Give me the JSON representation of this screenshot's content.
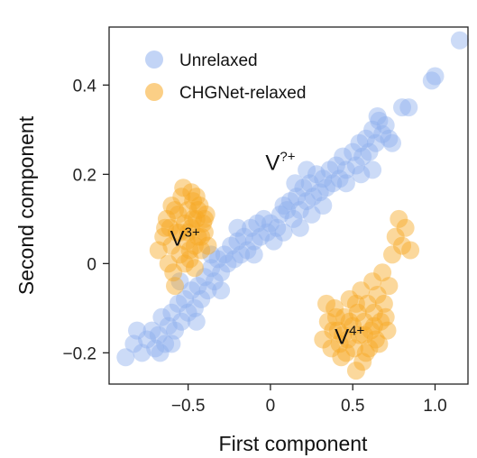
{
  "chart_data": {
    "type": "scatter",
    "xlabel": "First component",
    "ylabel": "Second component",
    "xlim": [
      -0.98,
      1.2
    ],
    "ylim": [
      -0.27,
      0.53
    ],
    "xticks": [
      -0.5,
      0,
      0.5,
      1.0
    ],
    "xtick_labels": [
      "−0.5",
      "0",
      "0.5",
      "1.0"
    ],
    "yticks": [
      -0.2,
      0,
      0.2,
      0.4
    ],
    "ytick_labels": [
      "−0.2",
      "0",
      "0.2",
      "0.4"
    ],
    "grid": false,
    "legend": "top-left",
    "series": [
      {
        "name": "Unrelaxed",
        "color": "#8fb0ee",
        "points": [
          [
            -0.88,
            -0.21
          ],
          [
            -0.83,
            -0.18
          ],
          [
            -0.81,
            -0.15
          ],
          [
            -0.78,
            -0.2
          ],
          [
            -0.75,
            -0.17
          ],
          [
            -0.72,
            -0.15
          ],
          [
            -0.7,
            -0.19
          ],
          [
            -0.68,
            -0.16
          ],
          [
            -0.66,
            -0.12
          ],
          [
            -0.64,
            -0.18
          ],
          [
            -0.62,
            -0.14
          ],
          [
            -0.6,
            -0.11
          ],
          [
            -0.58,
            -0.15
          ],
          [
            -0.56,
            -0.09
          ],
          [
            -0.54,
            -0.13
          ],
          [
            -0.52,
            -0.08
          ],
          [
            -0.5,
            -0.11
          ],
          [
            -0.48,
            -0.06
          ],
          [
            -0.46,
            -0.1
          ],
          [
            -0.44,
            -0.05
          ],
          [
            -0.42,
            -0.08
          ],
          [
            -0.4,
            -0.03
          ],
          [
            -0.38,
            -0.06
          ],
          [
            -0.36,
            -0.01
          ],
          [
            -0.34,
            -0.04
          ],
          [
            -0.32,
            0.01
          ],
          [
            -0.3,
            -0.02
          ],
          [
            -0.28,
            0.02
          ],
          [
            -0.26,
            0.0
          ],
          [
            -0.24,
            0.04
          ],
          [
            -0.22,
            0.01
          ],
          [
            -0.2,
            0.05
          ],
          [
            -0.18,
            0.02
          ],
          [
            -0.16,
            0.06
          ],
          [
            -0.14,
            0.03
          ],
          [
            -0.12,
            0.08
          ],
          [
            -0.1,
            0.05
          ],
          [
            -0.08,
            0.09
          ],
          [
            -0.06,
            0.06
          ],
          [
            -0.04,
            0.1
          ],
          [
            -0.02,
            0.07
          ],
          [
            0.0,
            0.09
          ],
          [
            0.02,
            0.05
          ],
          [
            0.04,
            0.08
          ],
          [
            0.06,
            0.11
          ],
          [
            0.08,
            0.07
          ],
          [
            0.1,
            0.12
          ],
          [
            0.12,
            0.14
          ],
          [
            0.14,
            0.1
          ],
          [
            0.16,
            0.15
          ],
          [
            0.18,
            0.12
          ],
          [
            0.2,
            0.17
          ],
          [
            0.22,
            0.14
          ],
          [
            0.24,
            0.18
          ],
          [
            0.26,
            0.15
          ],
          [
            0.28,
            0.2
          ],
          [
            0.3,
            0.16
          ],
          [
            0.32,
            0.19
          ],
          [
            0.34,
            0.17
          ],
          [
            0.36,
            0.21
          ],
          [
            0.38,
            0.18
          ],
          [
            0.4,
            0.22
          ],
          [
            0.42,
            0.19
          ],
          [
            0.44,
            0.24
          ],
          [
            0.46,
            0.21
          ],
          [
            0.5,
            0.25
          ],
          [
            0.52,
            0.22
          ],
          [
            0.54,
            0.27
          ],
          [
            0.56,
            0.24
          ],
          [
            0.58,
            0.28
          ],
          [
            0.6,
            0.25
          ],
          [
            0.62,
            0.3
          ],
          [
            0.64,
            0.27
          ],
          [
            0.66,
            0.32
          ],
          [
            0.68,
            0.29
          ],
          [
            0.7,
            0.31
          ],
          [
            0.72,
            0.28
          ],
          [
            0.74,
            0.27
          ],
          [
            0.62,
            0.21
          ],
          [
            0.55,
            0.2
          ],
          [
            0.46,
            0.18
          ],
          [
            0.32,
            0.13
          ],
          [
            0.25,
            0.11
          ],
          [
            0.18,
            0.08
          ],
          [
            -0.1,
            0.02
          ],
          [
            -0.3,
            -0.06
          ],
          [
            -0.45,
            -0.13
          ],
          [
            -0.6,
            -0.18
          ],
          [
            -0.67,
            -0.2
          ],
          [
            0.8,
            0.35
          ],
          [
            0.84,
            0.35
          ],
          [
            0.98,
            0.41
          ],
          [
            1.0,
            0.42
          ],
          [
            1.15,
            0.5
          ],
          [
            0.65,
            0.33
          ],
          [
            0.08,
            0.13
          ],
          [
            0.15,
            0.18
          ],
          [
            0.22,
            0.21
          ],
          [
            -0.2,
            0.08
          ],
          [
            -0.36,
            0.02
          ],
          [
            -0.55,
            -0.04
          ]
        ]
      },
      {
        "name": "CHGNet-relaxed",
        "color": "#f7a823",
        "points": [
          [
            -0.68,
            0.03
          ],
          [
            -0.65,
            0.06
          ],
          [
            -0.63,
            0.1
          ],
          [
            -0.62,
            0.0
          ],
          [
            -0.6,
            0.04
          ],
          [
            -0.58,
            0.12
          ],
          [
            -0.57,
            0.07
          ],
          [
            -0.55,
            0.02
          ],
          [
            -0.54,
            0.15
          ],
          [
            -0.52,
            0.09
          ],
          [
            -0.51,
            0.05
          ],
          [
            -0.5,
            0.12
          ],
          [
            -0.49,
            0.01
          ],
          [
            -0.48,
            0.08
          ],
          [
            -0.47,
            0.14
          ],
          [
            -0.46,
            0.04
          ],
          [
            -0.45,
            0.1
          ],
          [
            -0.44,
            0.06
          ],
          [
            -0.43,
            0.13
          ],
          [
            -0.42,
            0.03
          ],
          [
            -0.41,
            0.09
          ],
          [
            -0.4,
            0.07
          ],
          [
            -0.39,
            0.11
          ],
          [
            -0.38,
            0.04
          ],
          [
            -0.61,
            0.08
          ],
          [
            -0.59,
            -0.02
          ],
          [
            -0.56,
            0.11
          ],
          [
            -0.53,
            0.17
          ],
          [
            -0.5,
            0.07
          ],
          [
            -0.48,
            0.16
          ],
          [
            -0.46,
            -0.01
          ],
          [
            -0.44,
            0.12
          ],
          [
            -0.42,
            0.06
          ],
          [
            -0.58,
            -0.05
          ],
          [
            -0.52,
            0.0
          ],
          [
            -0.47,
            0.1
          ],
          [
            -0.64,
            0.08
          ],
          [
            -0.6,
            0.13
          ],
          [
            -0.55,
            0.07
          ],
          [
            -0.49,
            0.03
          ],
          [
            -0.45,
            0.15
          ],
          [
            -0.4,
            0.1
          ],
          [
            0.32,
            -0.17
          ],
          [
            0.35,
            -0.13
          ],
          [
            0.37,
            -0.19
          ],
          [
            0.39,
            -0.1
          ],
          [
            0.41,
            -0.15
          ],
          [
            0.43,
            -0.21
          ],
          [
            0.45,
            -0.12
          ],
          [
            0.47,
            -0.17
          ],
          [
            0.48,
            -0.08
          ],
          [
            0.5,
            -0.14
          ],
          [
            0.51,
            -0.19
          ],
          [
            0.53,
            -0.11
          ],
          [
            0.54,
            -0.16
          ],
          [
            0.55,
            -0.06
          ],
          [
            0.57,
            -0.13
          ],
          [
            0.58,
            -0.2
          ],
          [
            0.59,
            -0.09
          ],
          [
            0.61,
            -0.15
          ],
          [
            0.62,
            -0.04
          ],
          [
            0.63,
            -0.11
          ],
          [
            0.64,
            -0.17
          ],
          [
            0.65,
            -0.07
          ],
          [
            0.67,
            -0.13
          ],
          [
            0.68,
            -0.02
          ],
          [
            0.69,
            -0.09
          ],
          [
            0.71,
            -0.15
          ],
          [
            0.72,
            -0.05
          ],
          [
            0.74,
            0.02
          ],
          [
            0.76,
            0.06
          ],
          [
            0.78,
            0.1
          ],
          [
            0.8,
            0.04
          ],
          [
            0.82,
            0.08
          ],
          [
            0.85,
            0.03
          ],
          [
            0.34,
            -0.09
          ],
          [
            0.38,
            -0.15
          ],
          [
            0.42,
            -0.18
          ],
          [
            0.46,
            -0.2
          ],
          [
            0.52,
            -0.24
          ],
          [
            0.56,
            -0.22
          ],
          [
            0.6,
            -0.19
          ],
          [
            0.66,
            -0.18
          ],
          [
            0.7,
            -0.12
          ],
          [
            0.4,
            -0.12
          ],
          [
            0.44,
            -0.16
          ],
          [
            0.48,
            -0.13
          ],
          [
            0.52,
            -0.09
          ],
          [
            0.57,
            -0.16
          ],
          [
            0.63,
            -0.14
          ]
        ]
      }
    ],
    "annotations": [
      {
        "base": "V",
        "sup": "?+",
        "x": -0.03,
        "y": 0.21
      },
      {
        "base": "V",
        "sup": "3+",
        "x": -0.61,
        "y": 0.04
      },
      {
        "base": "V",
        "sup": "4+",
        "x": 0.39,
        "y": -0.18
      }
    ]
  }
}
